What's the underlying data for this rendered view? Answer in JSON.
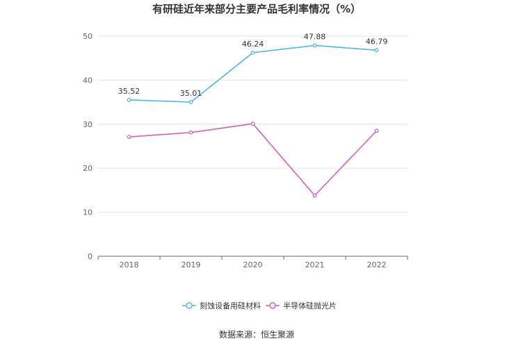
{
  "chart_data": {
    "type": "line",
    "title": "有研硅近年来部分主要产品毛利率情况（%）",
    "categories": [
      "2018",
      "2019",
      "2020",
      "2021",
      "2022"
    ],
    "ylim": [
      0,
      50
    ],
    "yticks": [
      0,
      10,
      20,
      30,
      40,
      50
    ],
    "grid": true,
    "legend_position": "bottom",
    "series": [
      {
        "name": "刻蚀设备用硅材料",
        "color": "#4db6e8",
        "values": [
          35.52,
          35.01,
          46.24,
          47.88,
          46.79
        ],
        "labels": [
          "35.52",
          "35.01",
          "46.24",
          "47.88",
          "46.79"
        ]
      },
      {
        "name": "半导体硅抛光片",
        "color": "#d261b4",
        "values": [
          27.1,
          28.1,
          30.1,
          13.8,
          28.5
        ]
      }
    ],
    "source": "数据来源：恒生聚源"
  }
}
